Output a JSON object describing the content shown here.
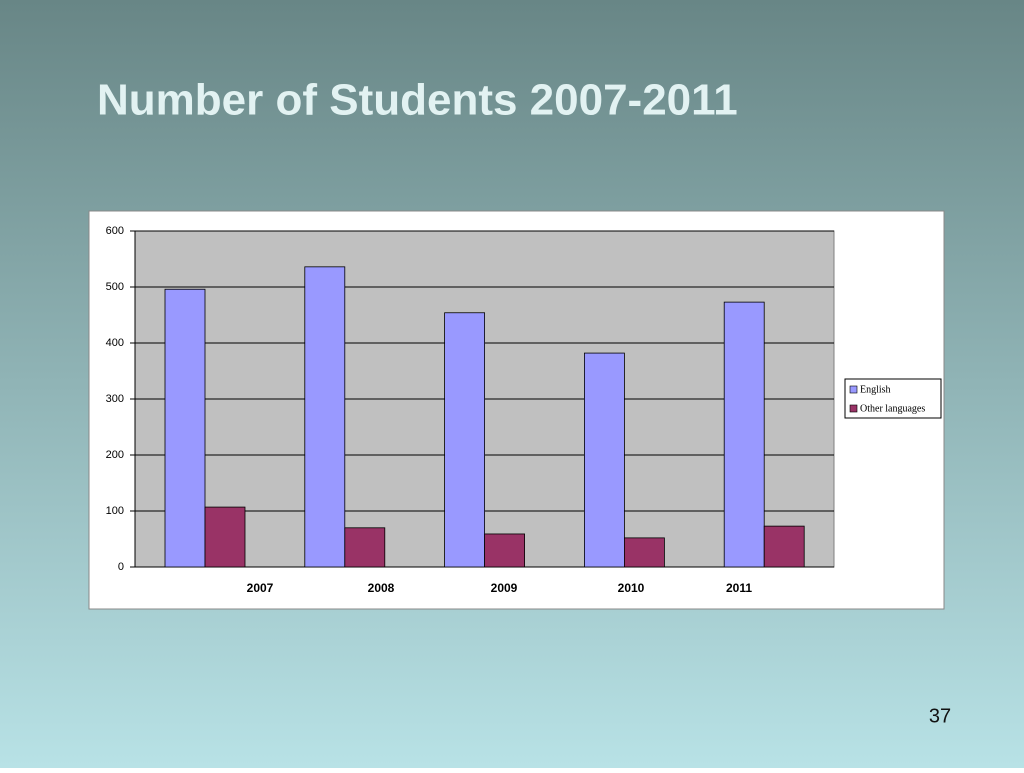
{
  "chart_data": {
    "type": "bar",
    "title": "Number of Students 2007-2011",
    "categories": [
      "2007",
      "2008",
      "2009",
      "2010",
      "2011"
    ],
    "series": [
      {
        "name": "English",
        "color": "#9999ff",
        "values": [
          496,
          536,
          454,
          382,
          473
        ]
      },
      {
        "name": "Other languages",
        "color": "#993366",
        "values": [
          107,
          70,
          59,
          52,
          73
        ]
      }
    ],
    "ylim": [
      0,
      600
    ],
    "yticks": [
      0,
      100,
      200,
      300,
      400,
      500,
      600
    ],
    "grid": true,
    "legend": "right"
  },
  "slide_number": "37"
}
